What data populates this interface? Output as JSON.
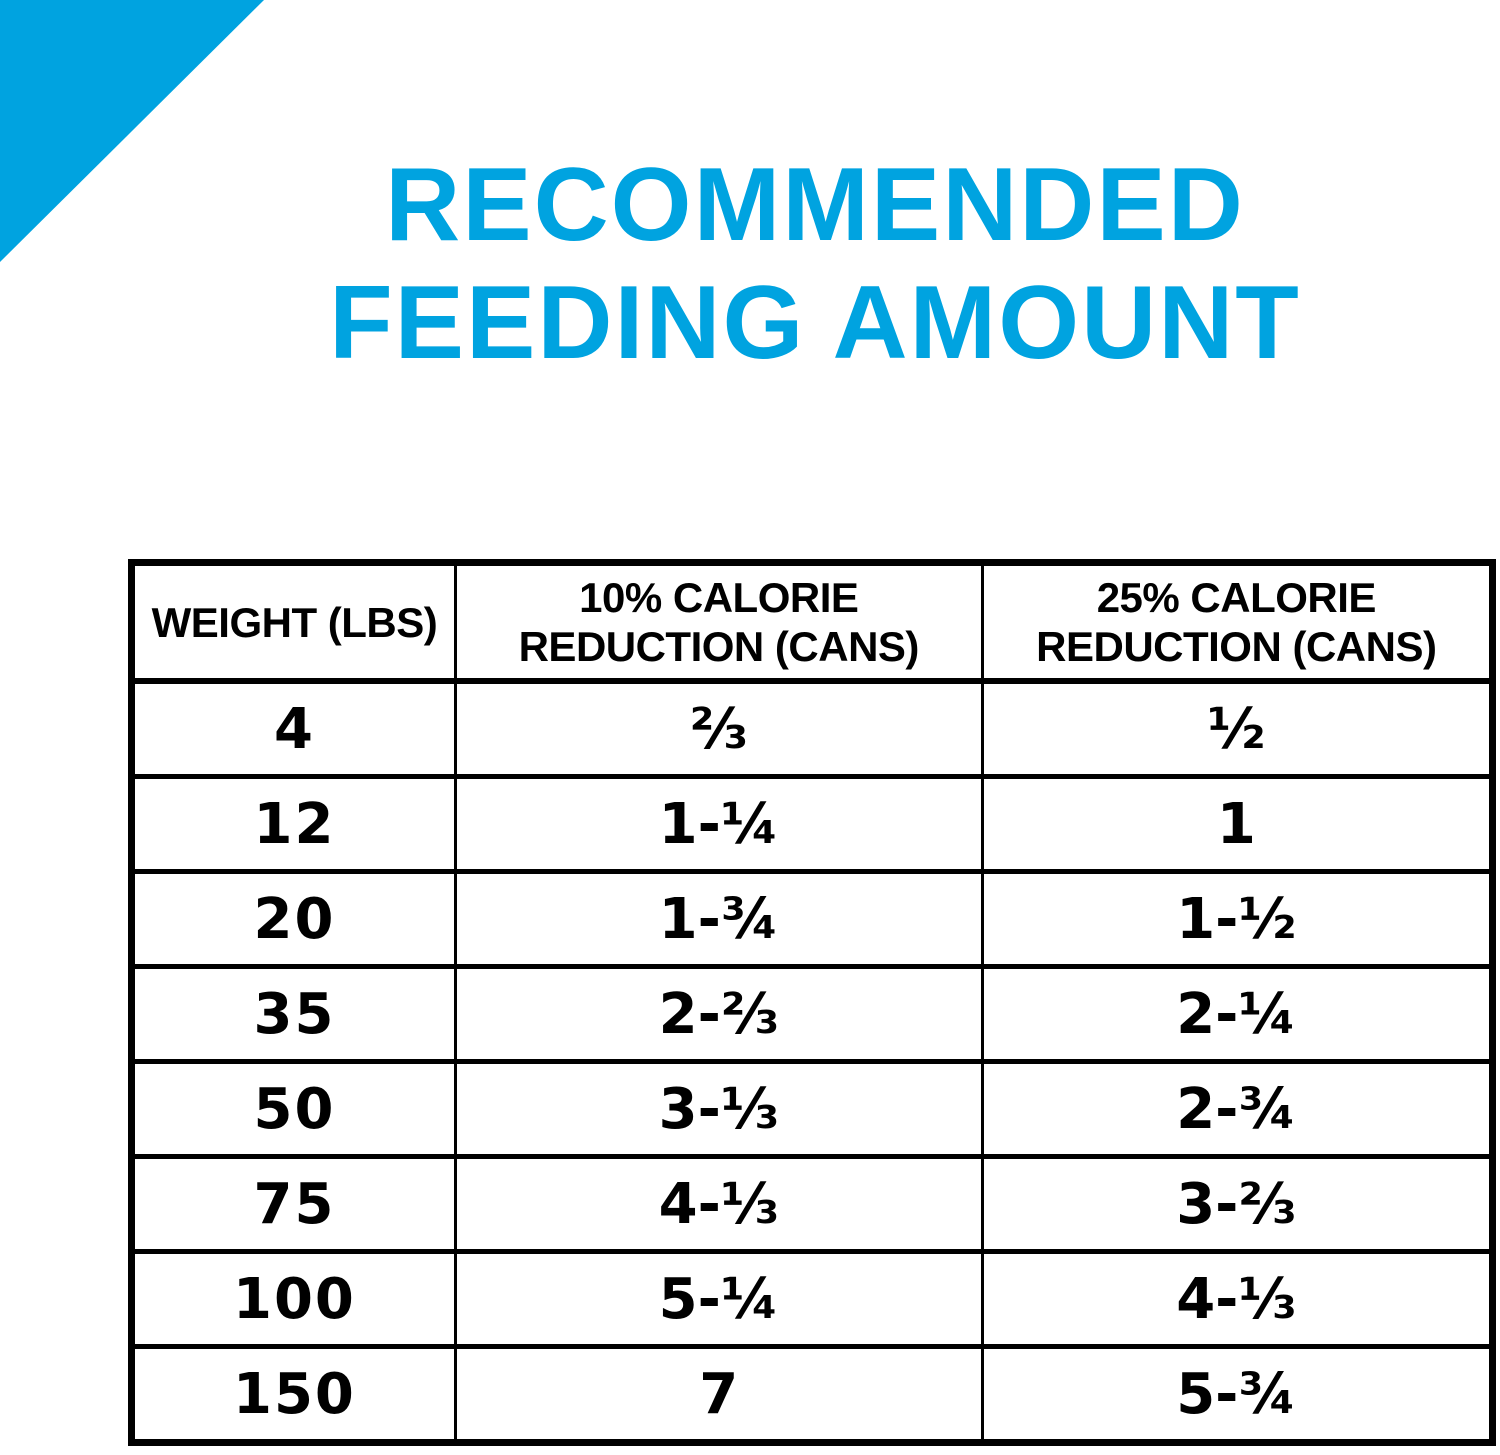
{
  "colors": {
    "accent_blue": "#00a3e0",
    "table_ink": "#000000",
    "background": "#ffffff"
  },
  "title": {
    "line1": "RECOMMENDED",
    "line2": "FEEDING AMOUNT"
  },
  "table": {
    "headers": [
      {
        "lines": [
          "WEIGHT (LBS)"
        ]
      },
      {
        "lines": [
          "10% CALORIE",
          "REDUCTION (CANS)"
        ]
      },
      {
        "lines": [
          "25% CALORIE",
          "REDUCTION (CANS)"
        ]
      }
    ],
    "rows": [
      [
        "4",
        "⅔",
        "½"
      ],
      [
        "12",
        "1-¼",
        "1"
      ],
      [
        "20",
        "1-¾",
        "1-½"
      ],
      [
        "35",
        "2-⅔",
        "2-¼"
      ],
      [
        "50",
        "3-⅓",
        "2-¾"
      ],
      [
        "75",
        "4-⅓",
        "3-⅔"
      ],
      [
        "100",
        "5-¼",
        "4-⅓"
      ],
      [
        "150",
        "7",
        "5-¾"
      ]
    ]
  },
  "chart_data": {
    "type": "table",
    "title": "RECOMMENDED FEEDING AMOUNT",
    "columns": [
      "WEIGHT (LBS)",
      "10% CALORIE REDUCTION (CANS)",
      "25% CALORIE REDUCTION (CANS)"
    ],
    "rows": [
      {
        "weight_lbs": 4,
        "cans_10pct_reduction": "2/3",
        "cans_25pct_reduction": "1/2"
      },
      {
        "weight_lbs": 12,
        "cans_10pct_reduction": "1-1/4",
        "cans_25pct_reduction": "1"
      },
      {
        "weight_lbs": 20,
        "cans_10pct_reduction": "1-3/4",
        "cans_25pct_reduction": "1-1/2"
      },
      {
        "weight_lbs": 35,
        "cans_10pct_reduction": "2-2/3",
        "cans_25pct_reduction": "2-1/4"
      },
      {
        "weight_lbs": 50,
        "cans_10pct_reduction": "3-1/3",
        "cans_25pct_reduction": "2-3/4"
      },
      {
        "weight_lbs": 75,
        "cans_10pct_reduction": "4-1/3",
        "cans_25pct_reduction": "3-2/3"
      },
      {
        "weight_lbs": 100,
        "cans_10pct_reduction": "5-1/4",
        "cans_25pct_reduction": "4-1/3"
      },
      {
        "weight_lbs": 150,
        "cans_10pct_reduction": "7",
        "cans_25pct_reduction": "5-3/4"
      }
    ]
  }
}
